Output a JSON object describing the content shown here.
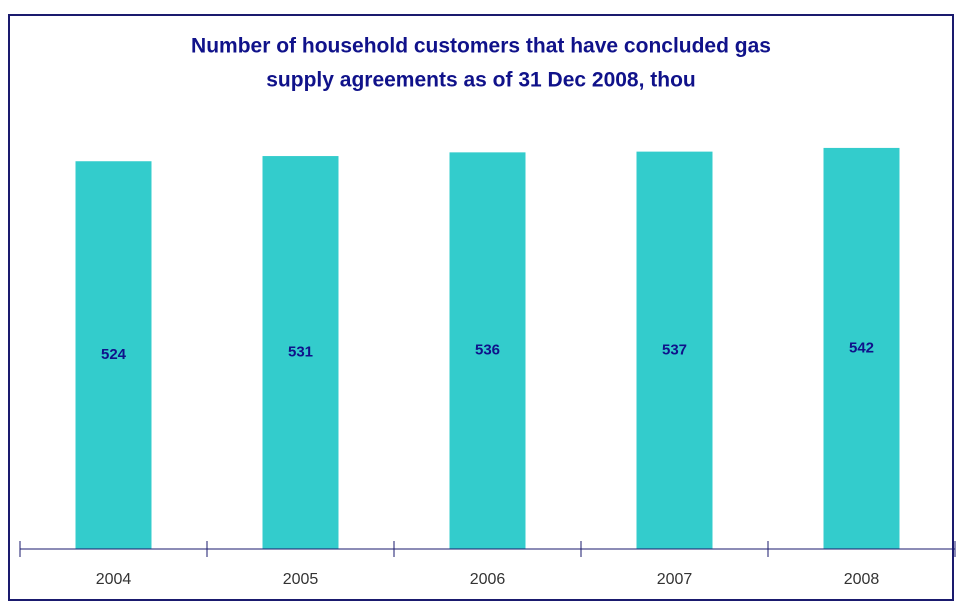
{
  "chart_data": {
    "type": "bar",
    "title": [
      "Number of household customers that have concluded gas",
      "supply agreements as of 31 Dec 2008, thou"
    ],
    "categories": [
      "2004",
      "2005",
      "2006",
      "2007",
      "2008"
    ],
    "values": [
      524,
      531,
      536,
      537,
      542
    ],
    "color": "#33cccc",
    "ylim": [
      0,
      700
    ]
  }
}
